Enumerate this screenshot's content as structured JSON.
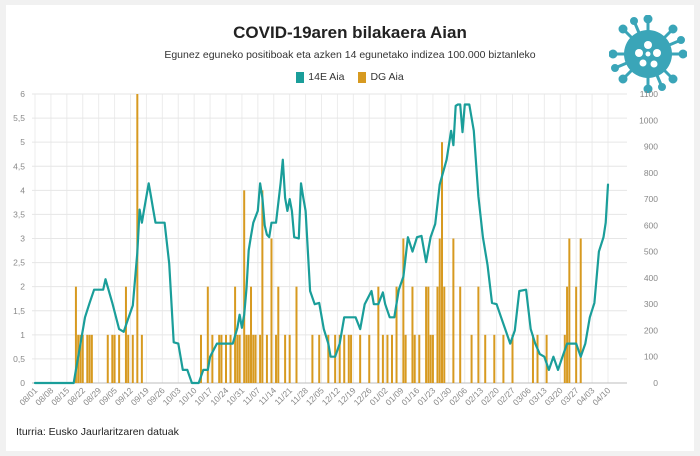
{
  "header": {
    "title": "COVID-19aren bilakaera Aian",
    "subtitle": "Egunez eguneko positiboak eta azken 14 egunetako indizea 100.000 biztanleko"
  },
  "legend": {
    "items": [
      {
        "label": "14E Aia",
        "color": "#1a9e9a"
      },
      {
        "label": "DG Aia",
        "color": "#d79a20"
      }
    ]
  },
  "footer": {
    "source": "Iturria: Eusko Jaurlaritzaren datuak"
  },
  "icons": {
    "virus": "coronavirus-icon"
  },
  "chart_data": {
    "type": "bar+line",
    "grid": true,
    "x_tick_labels": [
      "08/01",
      "08/08",
      "08/15",
      "08/22",
      "08/29",
      "09/05",
      "09/12",
      "09/19",
      "09/26",
      "10/03",
      "10/10",
      "10/17",
      "10/24",
      "10/31",
      "11/07",
      "11/14",
      "11/21",
      "11/28",
      "12/05",
      "12/12",
      "12/19",
      "12/26",
      "01/02",
      "01/09",
      "01/16",
      "01/23",
      "01/30",
      "02/06",
      "02/13",
      "02/20",
      "02/27",
      "03/06",
      "03/13",
      "03/20",
      "03/27",
      "04/03",
      "04/10"
    ],
    "left_axis": {
      "ylim": [
        0,
        6
      ],
      "ticks": [
        "0",
        "0,5",
        "1",
        "1,5",
        "2",
        "2,5",
        "3",
        "3,5",
        "4",
        "4,5",
        "5",
        "5,5",
        "6"
      ]
    },
    "right_axis": {
      "ylim": [
        0,
        1100
      ],
      "ticks": [
        "0",
        "100",
        "200",
        "300",
        "400",
        "500",
        "600",
        "700",
        "800",
        "900",
        "1000",
        "1100"
      ]
    },
    "series": [
      {
        "name": "DG Aia",
        "type": "bar",
        "axis": "left",
        "points": [
          [
            "08/19",
            2
          ],
          [
            "08/20",
            1
          ],
          [
            "08/21",
            1
          ],
          [
            "08/22",
            1
          ],
          [
            "08/24",
            1
          ],
          [
            "08/25",
            1
          ],
          [
            "08/26",
            1
          ],
          [
            "09/02",
            1
          ],
          [
            "09/04",
            1
          ],
          [
            "09/05",
            1
          ],
          [
            "09/07",
            1
          ],
          [
            "09/10",
            2
          ],
          [
            "09/11",
            1
          ],
          [
            "09/13",
            1
          ],
          [
            "09/15",
            6
          ],
          [
            "09/17",
            1
          ],
          [
            "10/13",
            1
          ],
          [
            "10/16",
            2
          ],
          [
            "10/18",
            1
          ],
          [
            "10/21",
            1
          ],
          [
            "10/22",
            1
          ],
          [
            "10/24",
            1
          ],
          [
            "10/26",
            1
          ],
          [
            "10/28",
            2
          ],
          [
            "10/29",
            1
          ],
          [
            "10/30",
            1
          ],
          [
            "11/01",
            4
          ],
          [
            "11/02",
            1
          ],
          [
            "11/03",
            1
          ],
          [
            "11/04",
            2
          ],
          [
            "11/05",
            1
          ],
          [
            "11/06",
            1
          ],
          [
            "11/08",
            1
          ],
          [
            "11/09",
            4
          ],
          [
            "11/11",
            1
          ],
          [
            "11/13",
            3
          ],
          [
            "11/15",
            1
          ],
          [
            "11/16",
            2
          ],
          [
            "11/19",
            1
          ],
          [
            "11/21",
            1
          ],
          [
            "11/24",
            2
          ],
          [
            "12/01",
            1
          ],
          [
            "12/04",
            1
          ],
          [
            "12/08",
            1
          ],
          [
            "12/11",
            1
          ],
          [
            "12/13",
            1
          ],
          [
            "12/15",
            1
          ],
          [
            "12/17",
            1
          ],
          [
            "12/18",
            1
          ],
          [
            "12/22",
            1
          ],
          [
            "12/26",
            1
          ],
          [
            "12/30",
            2
          ],
          [
            "01/01",
            1
          ],
          [
            "01/03",
            1
          ],
          [
            "01/05",
            1
          ],
          [
            "01/07",
            2
          ],
          [
            "01/10",
            3
          ],
          [
            "01/11",
            1
          ],
          [
            "01/14",
            2
          ],
          [
            "01/15",
            1
          ],
          [
            "01/17",
            1
          ],
          [
            "01/20",
            2
          ],
          [
            "01/21",
            2
          ],
          [
            "01/22",
            1
          ],
          [
            "01/23",
            1
          ],
          [
            "01/25",
            2
          ],
          [
            "01/26",
            3
          ],
          [
            "01/27",
            5
          ],
          [
            "01/28",
            2
          ],
          [
            "02/01",
            3
          ],
          [
            "02/04",
            2
          ],
          [
            "02/09",
            1
          ],
          [
            "02/12",
            2
          ],
          [
            "02/15",
            1
          ],
          [
            "02/19",
            1
          ],
          [
            "02/23",
            1
          ],
          [
            "02/27",
            1
          ],
          [
            "03/08",
            1
          ],
          [
            "03/10",
            1
          ],
          [
            "03/14",
            1
          ],
          [
            "03/22",
            1
          ],
          [
            "03/23",
            2
          ],
          [
            "03/24",
            3
          ],
          [
            "03/27",
            2
          ],
          [
            "03/29",
            3
          ]
        ]
      },
      {
        "name": "14E Aia",
        "type": "line",
        "axis": "right",
        "points": [
          [
            "08/01",
            0
          ],
          [
            "08/14",
            0
          ],
          [
            "08/18",
            0
          ],
          [
            "08/19",
            50
          ],
          [
            "08/21",
            150
          ],
          [
            "08/23",
            250
          ],
          [
            "08/25",
            305
          ],
          [
            "08/27",
            355
          ],
          [
            "08/31",
            355
          ],
          [
            "09/01",
            395
          ],
          [
            "09/04",
            305
          ],
          [
            "09/07",
            205
          ],
          [
            "09/09",
            195
          ],
          [
            "09/11",
            245
          ],
          [
            "09/13",
            295
          ],
          [
            "09/15",
            495
          ],
          [
            "09/16",
            660
          ],
          [
            "09/17",
            610
          ],
          [
            "09/18",
            660
          ],
          [
            "09/20",
            760
          ],
          [
            "09/21",
            710
          ],
          [
            "09/22",
            660
          ],
          [
            "09/23",
            610
          ],
          [
            "09/27",
            610
          ],
          [
            "09/29",
            455
          ],
          [
            "10/01",
            155
          ],
          [
            "10/03",
            150
          ],
          [
            "10/05",
            50
          ],
          [
            "10/07",
            50
          ],
          [
            "10/09",
            0
          ],
          [
            "10/12",
            0
          ],
          [
            "10/14",
            50
          ],
          [
            "10/16",
            50
          ],
          [
            "10/17",
            100
          ],
          [
            "10/20",
            150
          ],
          [
            "10/27",
            150
          ],
          [
            "10/29",
            210
          ],
          [
            "10/30",
            260
          ],
          [
            "10/31",
            210
          ],
          [
            "11/01",
            260
          ],
          [
            "11/02",
            360
          ],
          [
            "11/03",
            505
          ],
          [
            "11/04",
            560
          ],
          [
            "11/05",
            610
          ],
          [
            "11/07",
            655
          ],
          [
            "11/08",
            760
          ],
          [
            "11/09",
            705
          ],
          [
            "11/10",
            600
          ],
          [
            "11/11",
            565
          ],
          [
            "11/12",
            555
          ],
          [
            "11/13",
            610
          ],
          [
            "11/15",
            610
          ],
          [
            "11/17",
            760
          ],
          [
            "11/18",
            850
          ],
          [
            "11/19",
            705
          ],
          [
            "11/20",
            655
          ],
          [
            "11/21",
            700
          ],
          [
            "11/22",
            655
          ],
          [
            "11/23",
            555
          ],
          [
            "11/25",
            550
          ],
          [
            "11/26",
            760
          ],
          [
            "11/27",
            705
          ],
          [
            "11/28",
            655
          ],
          [
            "11/30",
            350
          ],
          [
            "12/02",
            300
          ],
          [
            "12/04",
            305
          ],
          [
            "12/06",
            205
          ],
          [
            "12/08",
            150
          ],
          [
            "12/09",
            100
          ],
          [
            "12/11",
            100
          ],
          [
            "12/13",
            150
          ],
          [
            "12/15",
            250
          ],
          [
            "12/20",
            250
          ],
          [
            "12/22",
            205
          ],
          [
            "12/24",
            300
          ],
          [
            "12/27",
            350
          ],
          [
            "12/28",
            300
          ],
          [
            "12/30",
            300
          ],
          [
            "01/01",
            345
          ],
          [
            "01/02",
            300
          ],
          [
            "01/04",
            250
          ],
          [
            "01/06",
            250
          ],
          [
            "01/08",
            355
          ],
          [
            "01/10",
            405
          ],
          [
            "01/12",
            555
          ],
          [
            "01/14",
            500
          ],
          [
            "01/16",
            555
          ],
          [
            "01/18",
            560
          ],
          [
            "01/20",
            460
          ],
          [
            "01/22",
            555
          ],
          [
            "01/24",
            605
          ],
          [
            "01/26",
            755
          ],
          [
            "01/29",
            850
          ],
          [
            "01/31",
            960
          ],
          [
            "02/01",
            905
          ],
          [
            "02/02",
            1055
          ],
          [
            "02/03",
            1060
          ],
          [
            "02/04",
            1060
          ],
          [
            "02/05",
            955
          ],
          [
            "02/06",
            1060
          ],
          [
            "02/08",
            1060
          ],
          [
            "02/10",
            960
          ],
          [
            "02/12",
            710
          ],
          [
            "02/14",
            555
          ],
          [
            "02/16",
            450
          ],
          [
            "02/18",
            305
          ],
          [
            "02/20",
            300
          ],
          [
            "02/22",
            250
          ],
          [
            "02/24",
            200
          ],
          [
            "02/26",
            150
          ],
          [
            "02/28",
            200
          ],
          [
            "03/02",
            350
          ],
          [
            "03/05",
            355
          ],
          [
            "03/07",
            205
          ],
          [
            "03/09",
            150
          ],
          [
            "03/11",
            110
          ],
          [
            "03/13",
            100
          ],
          [
            "03/15",
            50
          ],
          [
            "03/17",
            100
          ],
          [
            "03/19",
            50
          ],
          [
            "03/21",
            100
          ],
          [
            "03/23",
            150
          ],
          [
            "03/27",
            150
          ],
          [
            "03/29",
            100
          ],
          [
            "03/31",
            150
          ],
          [
            "04/02",
            250
          ],
          [
            "04/04",
            305
          ],
          [
            "04/06",
            500
          ],
          [
            "04/08",
            555
          ],
          [
            "04/09",
            610
          ],
          [
            "04/10",
            755
          ]
        ]
      }
    ]
  }
}
